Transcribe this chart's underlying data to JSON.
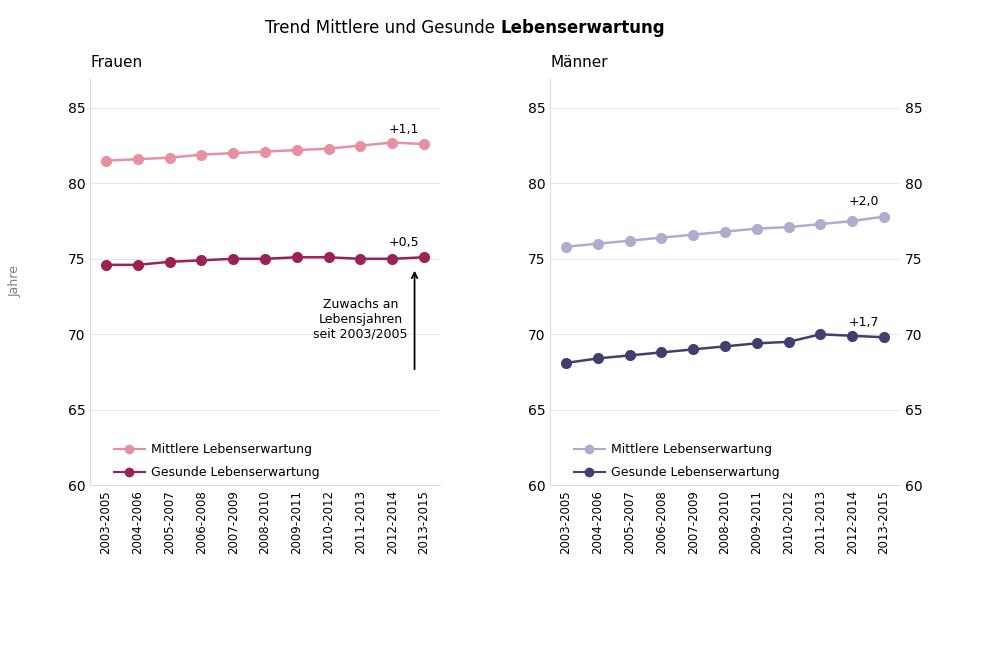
{
  "title_normal": "Trend Mittlere und Gesunde ",
  "title_bold": "Lebenserwartung",
  "x_labels": [
    "2003-2005",
    "2004-2006",
    "2005-2007",
    "2006-2008",
    "2007-2009",
    "2008-2010",
    "2009-2011",
    "2010-2012",
    "2011-2013",
    "2012-2014",
    "2013-2015"
  ],
  "frauen_mittlere": [
    81.5,
    81.6,
    81.7,
    81.9,
    82.0,
    82.1,
    82.2,
    82.3,
    82.5,
    82.7,
    82.6
  ],
  "frauen_gesunde": [
    74.6,
    74.6,
    74.8,
    74.9,
    75.0,
    75.0,
    75.1,
    75.1,
    75.0,
    75.0,
    75.1
  ],
  "maenner_mittlere": [
    75.8,
    76.0,
    76.2,
    76.4,
    76.6,
    76.8,
    77.0,
    77.1,
    77.3,
    77.5,
    77.8
  ],
  "maenner_gesunde": [
    68.1,
    68.4,
    68.6,
    68.8,
    69.0,
    69.2,
    69.4,
    69.5,
    70.0,
    69.9,
    69.8
  ],
  "frauen_mittlere_color": "#E8909F",
  "frauen_gesunde_color": "#9B2255",
  "maenner_mittlere_color": "#ADADCC",
  "maenner_gesunde_color": "#404070",
  "ylabel": "Jahre",
  "ylim": [
    60,
    87
  ],
  "yticks": [
    60,
    65,
    70,
    75,
    80,
    85
  ],
  "annotation_frauen_mittlere": "+1,1",
  "annotation_frauen_gesunde": "+0,5",
  "annotation_maenner_mittlere": "+2,0",
  "annotation_maenner_gesunde": "+1,7",
  "annotation_zuwachs": "Zuwachs an\nLebensjahren\nseit 2003/2005",
  "legend_mittlere": "Mittlere Lebenserwartung",
  "legend_gesunde": "Gesunde Lebenserwartung",
  "background_color": "#FFFFFF"
}
